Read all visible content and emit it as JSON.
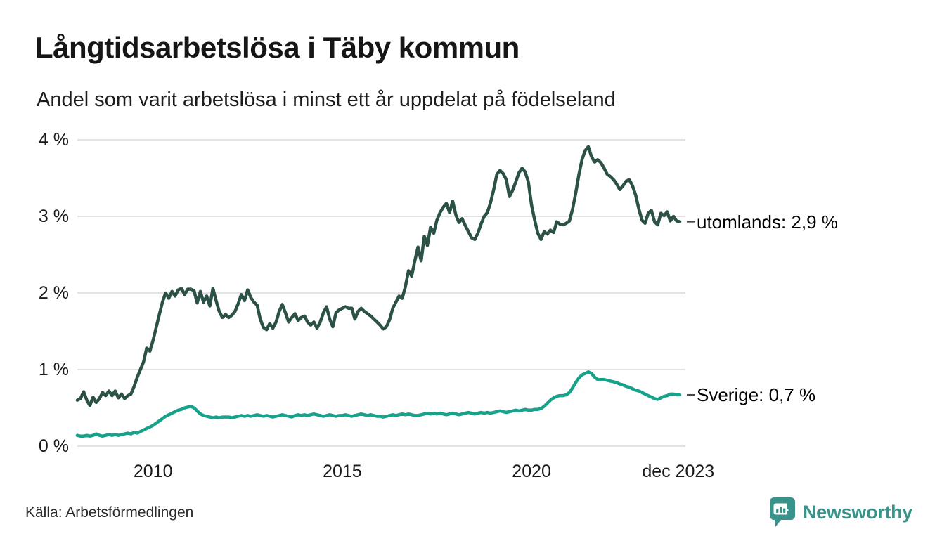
{
  "title": "Långtidsarbetslösa i Täby kommun",
  "subtitle": "Andel som varit arbetslösa i minst ett år uppdelat på födelseland",
  "source": "Källa: Arbetsförmedlingen",
  "branding": {
    "name": "Newsworthy",
    "logo_icon": "bar-chart-speech-bubble",
    "logo_color": "#3a938a"
  },
  "chart_data": {
    "type": "line",
    "title": "Långtidsarbetslösa i Täby kommun",
    "subtitle": "Andel som varit arbetslösa i minst ett år uppdelat på födelseland",
    "unit": "%",
    "x_start_year": 2008.0,
    "x_end_year": 2023.9167,
    "x_frequency": "monthly",
    "ylim": [
      0,
      4
    ],
    "grid": "horizontal",
    "legend_position": "end-of-line-labels",
    "colors": {
      "grid": "#e3e3e3",
      "connector": "#444444"
    },
    "y_ticks": [
      {
        "label": "0 %",
        "value": 0
      },
      {
        "label": "1 %",
        "value": 1
      },
      {
        "label": "2 %",
        "value": 2
      },
      {
        "label": "3 %",
        "value": 3
      },
      {
        "label": "4 %",
        "value": 4
      }
    ],
    "x_ticks": [
      {
        "label": "2010",
        "t": 2010
      },
      {
        "label": "2015",
        "t": 2015
      },
      {
        "label": "2020",
        "t": 2020
      },
      {
        "label": "dec 2023",
        "t": 2023.875
      }
    ],
    "series": [
      {
        "name": "utomlands",
        "end_label": "utomlands: 2,9 %",
        "end_value_display": "2,9 %",
        "color": "#2c5248",
        "values": [
          0.6,
          0.62,
          0.71,
          0.6,
          0.53,
          0.64,
          0.57,
          0.62,
          0.7,
          0.66,
          0.72,
          0.66,
          0.72,
          0.63,
          0.68,
          0.62,
          0.66,
          0.68,
          0.78,
          0.9,
          1.0,
          1.1,
          1.28,
          1.24,
          1.38,
          1.55,
          1.72,
          1.88,
          2.0,
          1.93,
          2.02,
          1.96,
          2.04,
          2.06,
          1.98,
          2.05,
          2.05,
          2.03,
          1.87,
          2.02,
          1.88,
          1.96,
          1.83,
          2.06,
          1.9,
          1.76,
          1.68,
          1.72,
          1.68,
          1.71,
          1.76,
          1.86,
          1.98,
          1.9,
          2.04,
          1.94,
          1.88,
          1.84,
          1.66,
          1.55,
          1.52,
          1.6,
          1.54,
          1.62,
          1.76,
          1.85,
          1.74,
          1.62,
          1.68,
          1.73,
          1.64,
          1.68,
          1.7,
          1.62,
          1.58,
          1.62,
          1.54,
          1.62,
          1.74,
          1.82,
          1.66,
          1.56,
          1.74,
          1.78,
          1.8,
          1.82,
          1.8,
          1.8,
          1.66,
          1.76,
          1.8,
          1.76,
          1.73,
          1.7,
          1.66,
          1.62,
          1.58,
          1.53,
          1.56,
          1.65,
          1.8,
          1.88,
          1.96,
          1.93,
          2.08,
          2.29,
          2.22,
          2.42,
          2.6,
          2.42,
          2.74,
          2.62,
          2.86,
          2.78,
          2.95,
          3.05,
          3.12,
          3.17,
          3.05,
          3.2,
          3.02,
          2.92,
          2.97,
          2.88,
          2.8,
          2.72,
          2.7,
          2.78,
          2.9,
          3.0,
          3.05,
          3.18,
          3.35,
          3.55,
          3.6,
          3.56,
          3.48,
          3.26,
          3.34,
          3.45,
          3.57,
          3.63,
          3.58,
          3.45,
          3.15,
          2.95,
          2.78,
          2.7,
          2.8,
          2.77,
          2.82,
          2.79,
          2.93,
          2.9,
          2.89,
          2.91,
          2.94,
          3.09,
          3.3,
          3.54,
          3.74,
          3.86,
          3.91,
          3.78,
          3.71,
          3.74,
          3.7,
          3.63,
          3.55,
          3.52,
          3.48,
          3.42,
          3.35,
          3.4,
          3.46,
          3.48,
          3.4,
          3.28,
          3.1,
          2.95,
          2.91,
          3.04,
          3.08,
          2.93,
          2.89,
          3.04,
          3.01,
          3.06,
          2.94,
          3.0,
          2.94,
          2.93
        ]
      },
      {
        "name": "Sverige",
        "end_label": "Sverige: 0,7 %",
        "end_value_display": "0,7 %",
        "color": "#17a28b",
        "values": [
          0.14,
          0.13,
          0.13,
          0.14,
          0.13,
          0.14,
          0.16,
          0.14,
          0.13,
          0.14,
          0.15,
          0.14,
          0.15,
          0.14,
          0.15,
          0.16,
          0.17,
          0.16,
          0.18,
          0.17,
          0.19,
          0.21,
          0.23,
          0.25,
          0.27,
          0.3,
          0.33,
          0.36,
          0.39,
          0.41,
          0.43,
          0.45,
          0.47,
          0.48,
          0.5,
          0.51,
          0.52,
          0.5,
          0.46,
          0.42,
          0.4,
          0.39,
          0.38,
          0.37,
          0.38,
          0.37,
          0.38,
          0.38,
          0.38,
          0.37,
          0.38,
          0.39,
          0.4,
          0.39,
          0.4,
          0.39,
          0.4,
          0.41,
          0.4,
          0.39,
          0.4,
          0.39,
          0.38,
          0.39,
          0.4,
          0.41,
          0.4,
          0.39,
          0.38,
          0.4,
          0.41,
          0.4,
          0.41,
          0.4,
          0.41,
          0.42,
          0.41,
          0.4,
          0.39,
          0.4,
          0.41,
          0.4,
          0.39,
          0.4,
          0.4,
          0.41,
          0.4,
          0.39,
          0.4,
          0.41,
          0.42,
          0.41,
          0.4,
          0.41,
          0.4,
          0.39,
          0.39,
          0.38,
          0.39,
          0.4,
          0.41,
          0.4,
          0.41,
          0.42,
          0.41,
          0.42,
          0.41,
          0.4,
          0.4,
          0.41,
          0.42,
          0.43,
          0.42,
          0.43,
          0.42,
          0.43,
          0.42,
          0.41,
          0.42,
          0.43,
          0.42,
          0.41,
          0.42,
          0.43,
          0.44,
          0.43,
          0.42,
          0.43,
          0.44,
          0.43,
          0.44,
          0.43,
          0.44,
          0.45,
          0.46,
          0.45,
          0.44,
          0.45,
          0.46,
          0.47,
          0.46,
          0.47,
          0.48,
          0.47,
          0.47,
          0.48,
          0.48,
          0.49,
          0.52,
          0.56,
          0.6,
          0.63,
          0.65,
          0.66,
          0.66,
          0.67,
          0.7,
          0.76,
          0.83,
          0.89,
          0.93,
          0.95,
          0.97,
          0.95,
          0.9,
          0.87,
          0.87,
          0.87,
          0.86,
          0.85,
          0.84,
          0.83,
          0.81,
          0.8,
          0.78,
          0.77,
          0.75,
          0.73,
          0.72,
          0.7,
          0.68,
          0.66,
          0.64,
          0.62,
          0.61,
          0.63,
          0.65,
          0.66,
          0.68,
          0.68,
          0.67,
          0.67
        ]
      }
    ]
  }
}
